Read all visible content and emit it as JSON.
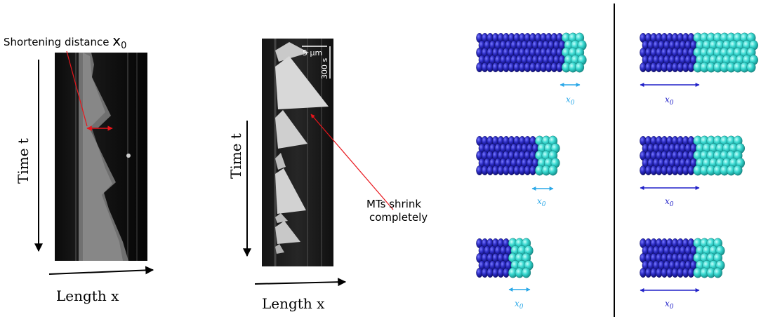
{
  "panel_left": {
    "annotation": "Shortening distance",
    "annotation_symbol": "x",
    "annotation_subscript": "0",
    "time_label": "Time t",
    "length_label": "Length x"
  },
  "panel_middle": {
    "scale_length": "5 µm",
    "scale_time": "300 s",
    "annotation_line1": "MTs shrink",
    "annotation_line2": "completely",
    "time_label": "Time t",
    "length_label": "Length x"
  },
  "panel_right": {
    "distance_label": "x",
    "distance_subscript": "0"
  },
  "colors": {
    "gdp_lattice": "#2a2ab8",
    "gtp_cap": "#2fd6cf",
    "arrow_red": "#e8151b",
    "arrow_cyan": "#2aa8e8",
    "arrow_blue": "#2020c8"
  }
}
